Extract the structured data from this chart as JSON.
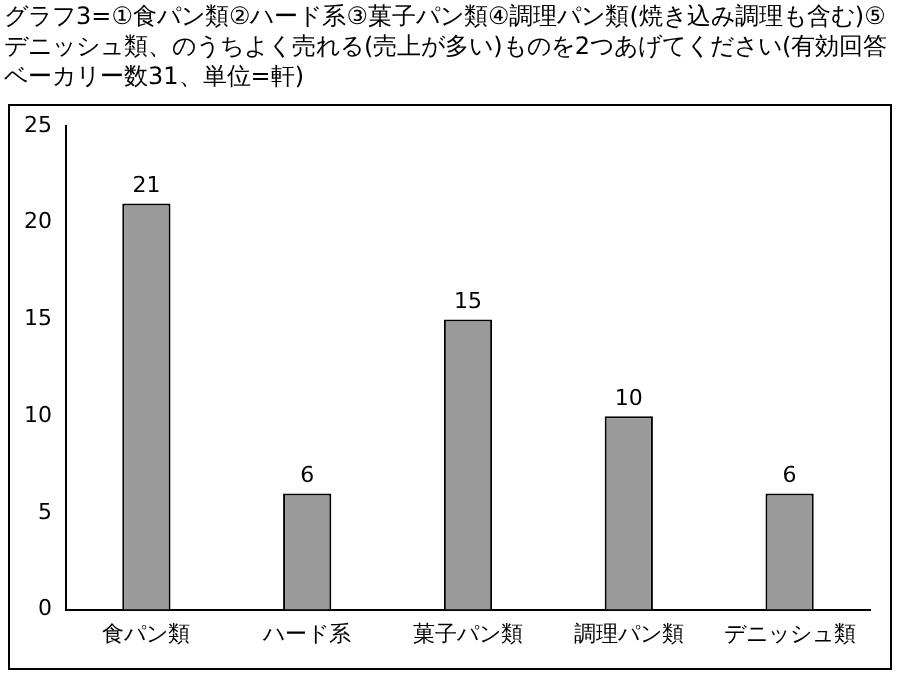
{
  "chart_data": {
    "type": "bar",
    "title": "グラフ3=①食パン類②ハード系③菓子パン類④調理パン類(焼き込み調理も含む)⑤デニッシュ類、のうちよく売れる(売上が多い)ものを2つあげてください(有効回答ベーカリー数31、単位=軒)",
    "categories": [
      "食パン類",
      "ハード系",
      "菓子パン類",
      "調理パン類",
      "デニッシュ類"
    ],
    "values": [
      21,
      6,
      15,
      10,
      6
    ],
    "color": "#9a9a9a",
    "ylim": [
      0,
      25
    ],
    "yticks": [
      0,
      5,
      10,
      15,
      20,
      25
    ],
    "grid": false,
    "legend": false,
    "data_labels": true
  }
}
